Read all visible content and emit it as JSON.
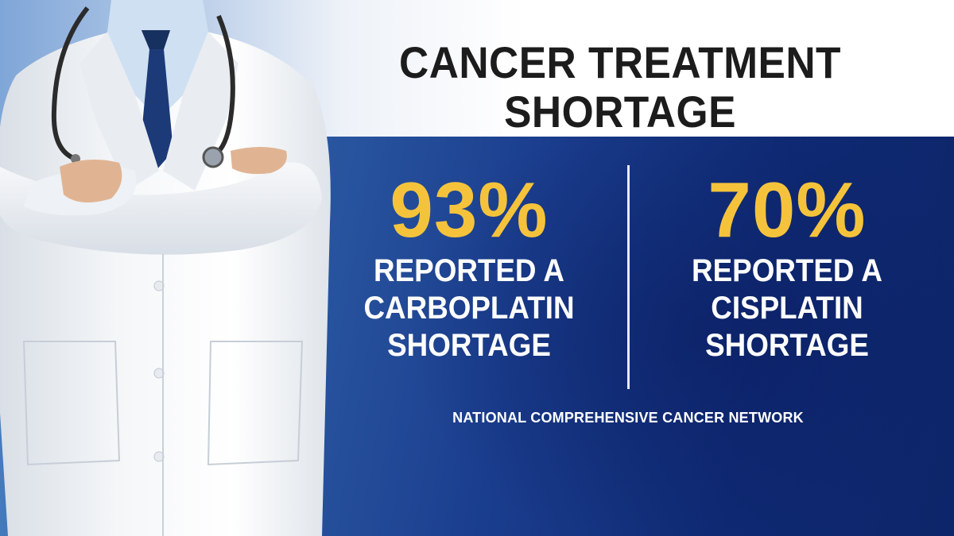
{
  "headline": {
    "line1": "CANCER TREATMENT",
    "line2": "SHORTAGE"
  },
  "stats": [
    {
      "value": "93%",
      "line1": "REPORTED A",
      "line2": "CARBOPLATIN",
      "line3": "SHORTAGE"
    },
    {
      "value": "70%",
      "line1": "REPORTED A",
      "line2": "CISPLATIN",
      "line3": "SHORTAGE"
    }
  ],
  "source": "NATIONAL COMPREHENSIVE CANCER NETWORK",
  "colors": {
    "accent_yellow": "#f5c33b",
    "navy": "#0f2a74",
    "title_text": "#1c1c1c"
  }
}
